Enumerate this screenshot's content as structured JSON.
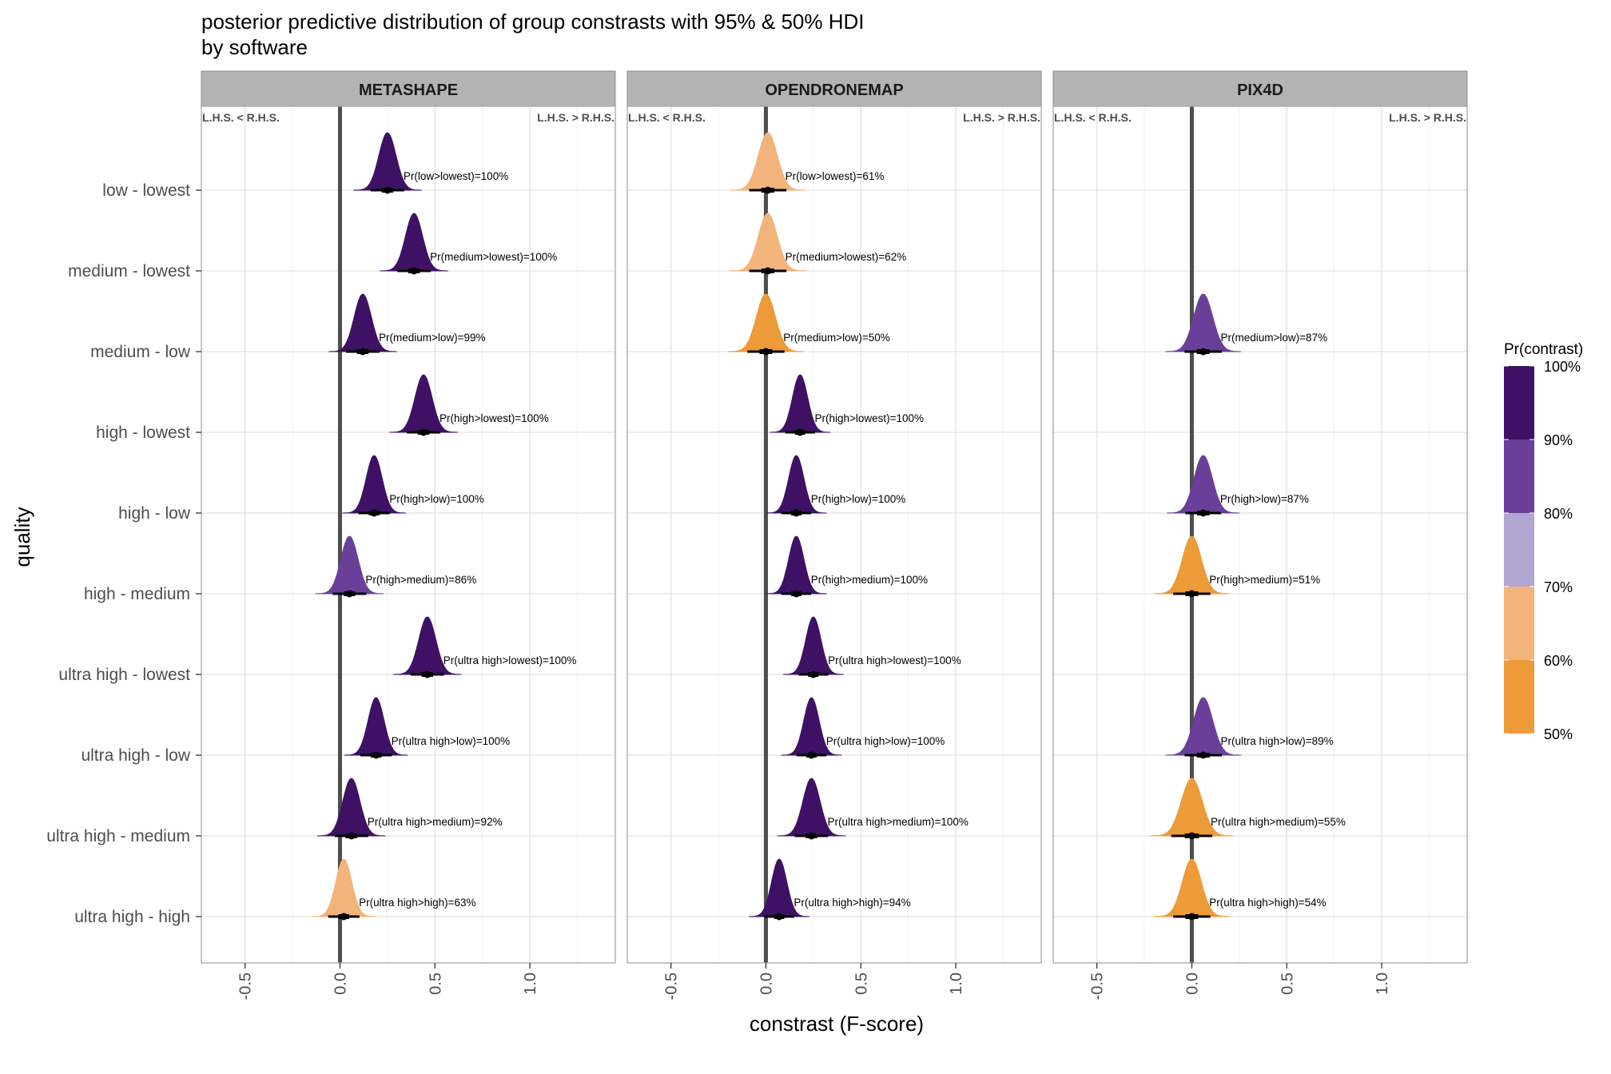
{
  "chart_data": {
    "type": "faceted-density-interval",
    "title": "posterior predictive distribution of group constrasts with 95% & 50% HDI",
    "subtitle": "by software",
    "xlabel": "constrast (F-score)",
    "ylabel": "quality",
    "xlim": [
      -0.73,
      1.45
    ],
    "x_ticks": [
      -0.5,
      0.0,
      0.5,
      1.0
    ],
    "x_tick_labels": [
      "-0.5",
      "0.0",
      "0.5",
      "1.0"
    ],
    "reference_line_x": 0,
    "grid": true,
    "corner_labels": {
      "left": "L.H.S. < R.H.S.",
      "right": "L.H.S. > R.H.S."
    },
    "categories": [
      "low - lowest",
      "medium - lowest",
      "medium - low",
      "high - lowest",
      "high - low",
      "high - medium",
      "ultra high - lowest",
      "ultra high - low",
      "ultra high - medium",
      "ultra high - high"
    ],
    "legend": {
      "title": "Pr(contrast)",
      "position": "right",
      "labels": [
        "100%",
        "90%",
        "80%",
        "70%",
        "60%",
        "50%"
      ],
      "bins": [
        {
          "range": [
            90,
            100
          ],
          "color": "#3f1164"
        },
        {
          "range": [
            80,
            90
          ],
          "color": "#6a3f99"
        },
        {
          "range": [
            70,
            80
          ],
          "color": "#b1a6d2"
        },
        {
          "range": [
            60,
            70
          ],
          "color": "#f2b47a"
        },
        {
          "range": [
            50,
            60
          ],
          "color": "#ed9a39"
        }
      ]
    },
    "panels": [
      {
        "name": "METASHAPE",
        "contrasts": [
          {
            "category": "low - lowest",
            "median": 0.25,
            "sd": 0.045,
            "prob": 100,
            "label": "Pr(low>lowest)=100%"
          },
          {
            "category": "medium - lowest",
            "median": 0.39,
            "sd": 0.045,
            "prob": 100,
            "label": "Pr(medium>lowest)=100%"
          },
          {
            "category": "medium - low",
            "median": 0.12,
            "sd": 0.045,
            "prob": 99,
            "label": "Pr(medium>low)=99%"
          },
          {
            "category": "high - lowest",
            "median": 0.44,
            "sd": 0.045,
            "prob": 100,
            "label": "Pr(high>lowest)=100%"
          },
          {
            "category": "high - low",
            "median": 0.18,
            "sd": 0.042,
            "prob": 100,
            "label": "Pr(high>low)=100%"
          },
          {
            "category": "high - medium",
            "median": 0.05,
            "sd": 0.045,
            "prob": 86,
            "label": "Pr(high>medium)=86%"
          },
          {
            "category": "ultra high - lowest",
            "median": 0.46,
            "sd": 0.045,
            "prob": 100,
            "label": "Pr(ultra high>lowest)=100%"
          },
          {
            "category": "ultra high - low",
            "median": 0.19,
            "sd": 0.042,
            "prob": 100,
            "label": "Pr(ultra high>low)=100%"
          },
          {
            "category": "ultra high - medium",
            "median": 0.06,
            "sd": 0.045,
            "prob": 92,
            "label": "Pr(ultra high>medium)=92%"
          },
          {
            "category": "ultra high - high",
            "median": 0.02,
            "sd": 0.042,
            "prob": 63,
            "label": "Pr(ultra high>high)=63%"
          }
        ]
      },
      {
        "name": "OPENDRONEMAP",
        "contrasts": [
          {
            "category": "low - lowest",
            "median": 0.01,
            "sd": 0.05,
            "prob": 61,
            "label": "Pr(low>lowest)=61%"
          },
          {
            "category": "medium - lowest",
            "median": 0.01,
            "sd": 0.05,
            "prob": 62,
            "label": "Pr(medium>lowest)=62%"
          },
          {
            "category": "medium - low",
            "median": 0.0,
            "sd": 0.05,
            "prob": 50,
            "label": "Pr(medium>low)=50%"
          },
          {
            "category": "high - lowest",
            "median": 0.18,
            "sd": 0.04,
            "prob": 100,
            "label": "Pr(high>lowest)=100%"
          },
          {
            "category": "high - low",
            "median": 0.16,
            "sd": 0.04,
            "prob": 100,
            "label": "Pr(high>low)=100%"
          },
          {
            "category": "high - medium",
            "median": 0.16,
            "sd": 0.04,
            "prob": 100,
            "label": "Pr(high>medium)=100%"
          },
          {
            "category": "ultra high - lowest",
            "median": 0.25,
            "sd": 0.04,
            "prob": 100,
            "label": "Pr(ultra high>lowest)=100%"
          },
          {
            "category": "ultra high - low",
            "median": 0.24,
            "sd": 0.04,
            "prob": 100,
            "label": "Pr(ultra high>low)=100%"
          },
          {
            "category": "ultra high - medium",
            "median": 0.24,
            "sd": 0.045,
            "prob": 100,
            "label": "Pr(ultra high>medium)=100%"
          },
          {
            "category": "ultra high - high",
            "median": 0.07,
            "sd": 0.04,
            "prob": 94,
            "label": "Pr(ultra high>high)=94%"
          }
        ]
      },
      {
        "name": "PIX4D",
        "contrasts": [
          {
            "category": "medium - low",
            "median": 0.06,
            "sd": 0.05,
            "prob": 87,
            "label": "Pr(medium>low)=87%"
          },
          {
            "category": "high - low",
            "median": 0.06,
            "sd": 0.048,
            "prob": 87,
            "label": "Pr(high>low)=87%"
          },
          {
            "category": "high - medium",
            "median": 0.0,
            "sd": 0.05,
            "prob": 51,
            "label": "Pr(high>medium)=51%"
          },
          {
            "category": "ultra high - low",
            "median": 0.06,
            "sd": 0.05,
            "prob": 89,
            "label": "Pr(ultra high>low)=89%"
          },
          {
            "category": "ultra high - medium",
            "median": 0.0,
            "sd": 0.055,
            "prob": 55,
            "label": "Pr(ultra high>medium)=55%"
          },
          {
            "category": "ultra high - high",
            "median": 0.0,
            "sd": 0.05,
            "prob": 54,
            "label": "Pr(ultra high>high)=54%"
          }
        ]
      }
    ]
  }
}
